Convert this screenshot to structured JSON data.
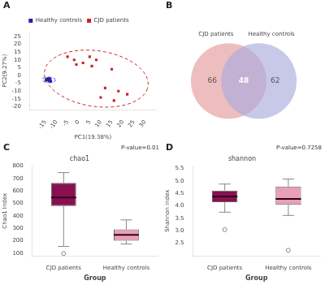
{
  "chart_data": [
    {
      "type": "scatter",
      "panel_label": "A",
      "xlabel": "PC1(19.38%)",
      "ylabel": "PC2(9.27%)",
      "series": [
        {
          "name": "Healthy controls",
          "color": "#2222aa",
          "marker": "square",
          "x": [
            -14,
            -13.5,
            -12.8,
            -13.2,
            -14.2,
            -13.0,
            -14.5,
            -12.5,
            -13.8,
            -14.8
          ],
          "values": [
            -3,
            -2.5,
            -2,
            -3.5,
            -2.8,
            -3.2,
            -2.2,
            -3.8,
            -2.0,
            -3.0
          ],
          "ellipse": {
            "center": [
              -13.5,
              -2.8
            ],
            "width": 6.0,
            "height": 3.5,
            "angle": -5,
            "line_style": "dashed"
          }
        },
        {
          "name": "CJD patients",
          "color": "#cc2222",
          "marker": "square",
          "x": [
            -5,
            -2,
            5,
            8,
            2,
            -1,
            6,
            15,
            12,
            18,
            22,
            16,
            10
          ],
          "values": [
            12,
            10,
            12,
            10,
            8,
            7,
            6,
            4,
            -8,
            -10,
            -12,
            -16,
            -14
          ],
          "ellipse": {
            "center": [
              8.0,
              -2.0
            ],
            "width": 48.0,
            "height": 35.0,
            "angle": -18,
            "line_style": "dashed"
          }
        }
      ],
      "xlim": [
        -22,
        35
      ],
      "ylim": [
        -22,
        28
      ],
      "xticks": [
        -15,
        -10,
        -5,
        0,
        5,
        10,
        15,
        20,
        25,
        30
      ],
      "yticks": [
        -20,
        -15,
        -10,
        -5,
        0,
        5,
        10,
        15,
        20,
        25
      ],
      "grid": false,
      "legend": "top"
    },
    {
      "type": "venn",
      "panel_label": "B",
      "sets": [
        {
          "name": "CJD patients",
          "color": "#e8a8a8",
          "only": 66
        },
        {
          "name": "Healthy controls",
          "color": "#aaaadd",
          "only": 62
        }
      ],
      "shared": 48,
      "tick_labels": false
    },
    {
      "type": "box",
      "panel_label": "C",
      "title": "chao1",
      "xlabel": "Group",
      "ylabel": "Chao1 Index",
      "annotations": [
        "P-value=0.01"
      ],
      "categories": [
        "CJD patients",
        "Healthy controls"
      ],
      "values": [
        {
          "min": 155,
          "q1": 480,
          "median": 548,
          "q3": 665,
          "max": 748,
          "outliers": [
            98
          ]
        },
        {
          "min": 175,
          "q1": 200,
          "median": 248,
          "q3": 292,
          "max": 368,
          "outliers": []
        }
      ],
      "colors": [
        "#881050",
        "#e8a0b8"
      ],
      "ylim": [
        80,
        800
      ],
      "yticks": [
        100,
        200,
        300,
        400,
        500,
        600,
        700,
        800
      ],
      "grid": false
    },
    {
      "type": "box",
      "panel_label": "D",
      "title": "shannon",
      "xlabel": "Group",
      "ylabel": "Shannon index",
      "annotations": [
        "P-value=0.7258"
      ],
      "categories": [
        "CJD patients",
        "Healthy controls"
      ],
      "values": [
        {
          "min": 3.75,
          "q1": 4.15,
          "median": 4.38,
          "q3": 4.62,
          "max": 4.88,
          "outliers": [
            3.05
          ]
        },
        {
          "min": 3.62,
          "q1": 4.05,
          "median": 4.28,
          "q3": 4.78,
          "max": 5.08,
          "outliers": [
            2.22
          ]
        }
      ],
      "colors": [
        "#881050",
        "#e8a0b8"
      ],
      "ylim": [
        2.0,
        5.6
      ],
      "yticks": [
        2.5,
        {
          "value": 3.0,
          "label": "3.0"
        },
        3.5,
        {
          "value": 4.0,
          "label": "4.0"
        },
        4.5,
        {
          "value": 5.0,
          "label": "5.0"
        },
        5.5
      ],
      "grid": false
    }
  ]
}
